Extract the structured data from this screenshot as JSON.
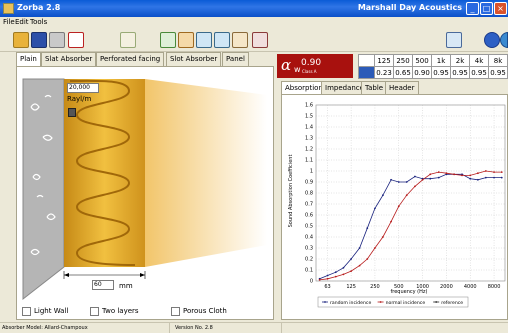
{
  "window": {
    "title": "Zorba  2.8",
    "company": "Marshall Day Acoustics",
    "minimize": "_",
    "maximize": "□",
    "close": "×"
  },
  "menu": [
    "File",
    "Edit",
    "Tools"
  ],
  "toolbar": {
    "left_icons": [
      "new-icon",
      "save-icon",
      "print-icon",
      "report-icon",
      "wand-icon",
      "tool-a-icon",
      "tool-b-icon",
      "tool-c-icon",
      "tool-d-icon",
      "chart-icon",
      "tool-e-icon"
    ],
    "right_icons": [
      "rotate-icon",
      "help-icon",
      "globe-icon"
    ]
  },
  "tabs": [
    "Plain",
    "Slat Absorber",
    "Perforated facing",
    "Slot Absorber",
    "Panel"
  ],
  "left_panel": {
    "thickness_value": "20,000",
    "density_label": "Rayl/m",
    "dimension_value": "60",
    "dimension_unit": "mm",
    "checkboxes": [
      "Light Wall",
      "Two layers",
      "Porous Cloth"
    ]
  },
  "rating": {
    "symbol": "α",
    "subscript": "w",
    "value": "0.90",
    "class_label": "Class A"
  },
  "band_table": {
    "headers": [
      "125",
      "250",
      "500",
      "1k",
      "2k",
      "4k",
      "8k"
    ],
    "values": [
      "0.23",
      "0.65",
      "0.90",
      "0.95",
      "0.95",
      "0.95",
      "0.95"
    ]
  },
  "right_tabs": [
    "Absorption",
    "Impedance",
    "Table",
    "Header"
  ],
  "chart_data": {
    "type": "line",
    "ylabel": "Sound Absorption Coefficient",
    "xlabel": "frequency (Hz)",
    "x_ticks": [
      "63",
      "125",
      "250",
      "500",
      "1000",
      "2000",
      "4000",
      "8000"
    ],
    "y_ticks": [
      "0",
      "0.1",
      "0.2",
      "0.3",
      "0.4",
      "0.5",
      "0.6",
      "0.7",
      "0.8",
      "0.9",
      "1",
      "1.1",
      "1.2",
      "1.3",
      "1.4",
      "1.5",
      "1.6"
    ],
    "ylim": [
      0,
      1.6
    ],
    "x_scale": "log",
    "grid": true,
    "legend_position": "bottom",
    "series": [
      {
        "name": "random incidence",
        "color": "#1a237e",
        "x": [
          50,
          63,
          80,
          100,
          125,
          160,
          200,
          250,
          315,
          400,
          500,
          630,
          800,
          1000,
          1250,
          1600,
          2000,
          2500,
          3150,
          4000,
          5000,
          6300,
          8000,
          10000
        ],
        "values": [
          0.02,
          0.05,
          0.08,
          0.12,
          0.2,
          0.3,
          0.48,
          0.66,
          0.78,
          0.92,
          0.9,
          0.9,
          0.95,
          0.93,
          0.93,
          0.94,
          0.97,
          0.97,
          0.97,
          0.93,
          0.92,
          0.94,
          0.94,
          0.94
        ]
      },
      {
        "name": "normal incidence",
        "color": "#b71c1c",
        "x": [
          50,
          63,
          80,
          100,
          125,
          160,
          200,
          250,
          315,
          400,
          500,
          630,
          800,
          1000,
          1250,
          1600,
          2000,
          2500,
          3150,
          4000,
          5000,
          6300,
          8000,
          10000
        ],
        "values": [
          0.01,
          0.02,
          0.04,
          0.06,
          0.09,
          0.14,
          0.2,
          0.3,
          0.4,
          0.54,
          0.68,
          0.78,
          0.86,
          0.92,
          0.97,
          0.99,
          0.98,
          0.97,
          0.96,
          0.96,
          0.98,
          1.0,
          0.99,
          0.99
        ]
      },
      {
        "name": "reference",
        "color": "#222222",
        "x": [],
        "values": []
      }
    ]
  },
  "status_bar": {
    "absorber_model": "Absorber Model: Allard-Champoux",
    "version": "Version No. 2.8"
  }
}
